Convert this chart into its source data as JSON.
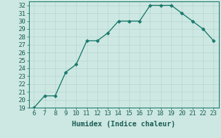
{
  "x": [
    6,
    7,
    8,
    9,
    10,
    11,
    12,
    13,
    14,
    15,
    16,
    17,
    18,
    19,
    20,
    21,
    22,
    23
  ],
  "y": [
    19,
    20.5,
    20.5,
    23.5,
    24.5,
    27.5,
    27.5,
    28.5,
    30,
    30,
    30,
    32,
    32,
    32,
    31,
    30,
    29,
    27.5
  ],
  "line_color": "#1a7a6e",
  "marker": "D",
  "marker_size": 2.5,
  "xlabel": "Humidex (Indice chaleur)",
  "xlim": [
    5.5,
    23.5
  ],
  "ylim": [
    19,
    32.5
  ],
  "xticks": [
    6,
    7,
    8,
    9,
    10,
    11,
    12,
    13,
    14,
    15,
    16,
    17,
    18,
    19,
    20,
    21,
    22,
    23
  ],
  "yticks": [
    19,
    20,
    21,
    22,
    23,
    24,
    25,
    26,
    27,
    28,
    29,
    30,
    31,
    32
  ],
  "bg_color": "#cde8e2",
  "grid_color": "#b8d4cf",
  "tick_label_fontsize": 6.5,
  "xlabel_fontsize": 7.5
}
